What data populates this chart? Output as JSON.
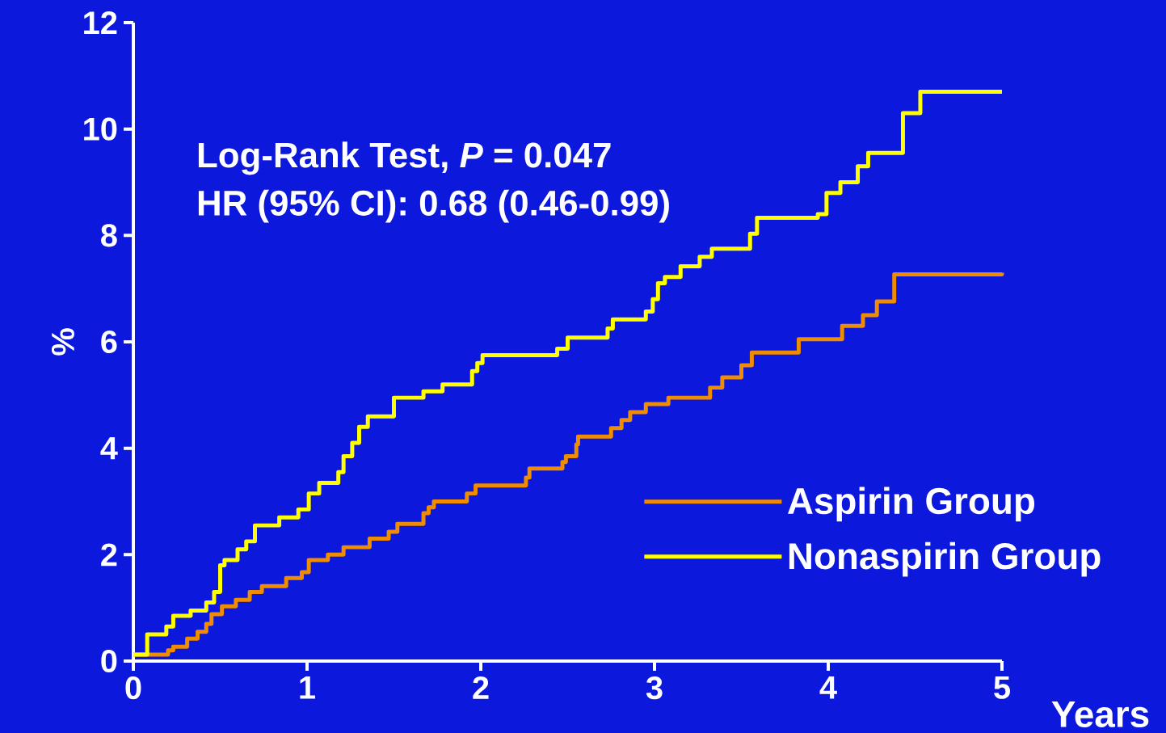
{
  "chart_data": {
    "type": "step",
    "ylabel": "%",
    "xlabel": "Years",
    "annotations": [
      "Log-Rank Test, *P* = 0.047",
      "HR (95% CI): 0.68 (0.46-0.99)"
    ],
    "xlim": [
      0,
      5
    ],
    "ylim": [
      0,
      12
    ],
    "xticks": [
      0,
      1,
      2,
      3,
      4,
      5
    ],
    "yticks": [
      0,
      2,
      4,
      6,
      8,
      10,
      12
    ],
    "legend": "bottom right",
    "grid": false,
    "series": [
      {
        "name": "Aspirin Group",
        "color": "#f08c00",
        "x": [
          0,
          0.2,
          0.23,
          0.31,
          0.37,
          0.42,
          0.45,
          0.51,
          0.59,
          0.67,
          0.74,
          0.88,
          0.97,
          1.01,
          1.12,
          1.21,
          1.36,
          1.47,
          1.52,
          1.67,
          1.7,
          1.73,
          1.92,
          1.97,
          2.26,
          2.28,
          2.47,
          2.49,
          2.55,
          2.56,
          2.75,
          2.81,
          2.86,
          2.95,
          3.08,
          3.32,
          3.39,
          3.5,
          3.56,
          3.83,
          4.08,
          4.2,
          4.28,
          4.38,
          5
        ],
        "values": [
          0.12,
          0.2,
          0.27,
          0.42,
          0.55,
          0.7,
          0.88,
          1.03,
          1.15,
          1.3,
          1.41,
          1.56,
          1.67,
          1.9,
          2.0,
          2.14,
          2.3,
          2.43,
          2.58,
          2.78,
          2.89,
          3.0,
          3.15,
          3.3,
          3.45,
          3.62,
          3.74,
          3.85,
          4.07,
          4.22,
          4.38,
          4.53,
          4.68,
          4.83,
          4.95,
          5.14,
          5.33,
          5.56,
          5.8,
          6.05,
          6.3,
          6.5,
          6.76,
          7.27,
          7.3
        ]
      },
      {
        "name": "Nonaspirin Group",
        "color": "#ffff00",
        "x": [
          0,
          0.08,
          0.19,
          0.23,
          0.33,
          0.42,
          0.465,
          0.5,
          0.525,
          0.6,
          0.65,
          0.7,
          0.84,
          0.95,
          1.01,
          1.07,
          1.18,
          1.21,
          1.26,
          1.3,
          1.35,
          1.5,
          1.67,
          1.78,
          1.95,
          1.98,
          2.01,
          2.44,
          2.5,
          2.73,
          2.76,
          2.95,
          2.99,
          3.02,
          3.06,
          3.15,
          3.26,
          3.33,
          3.55,
          3.59,
          3.94,
          3.99,
          4.07,
          4.17,
          4.23,
          4.43,
          4.53,
          5
        ],
        "values": [
          0.12,
          0.5,
          0.65,
          0.85,
          0.95,
          1.1,
          1.3,
          1.8,
          1.9,
          2.1,
          2.25,
          2.55,
          2.7,
          2.85,
          3.15,
          3.35,
          3.55,
          3.85,
          4.1,
          4.4,
          4.6,
          4.95,
          5.07,
          5.2,
          5.45,
          5.6,
          5.75,
          5.87,
          6.08,
          6.25,
          6.42,
          6.57,
          6.8,
          7.1,
          7.22,
          7.42,
          7.6,
          7.75,
          8.03,
          8.33,
          8.4,
          8.8,
          9.0,
          9.3,
          9.55,
          10.3,
          10.7,
          10.7
        ]
      }
    ]
  }
}
